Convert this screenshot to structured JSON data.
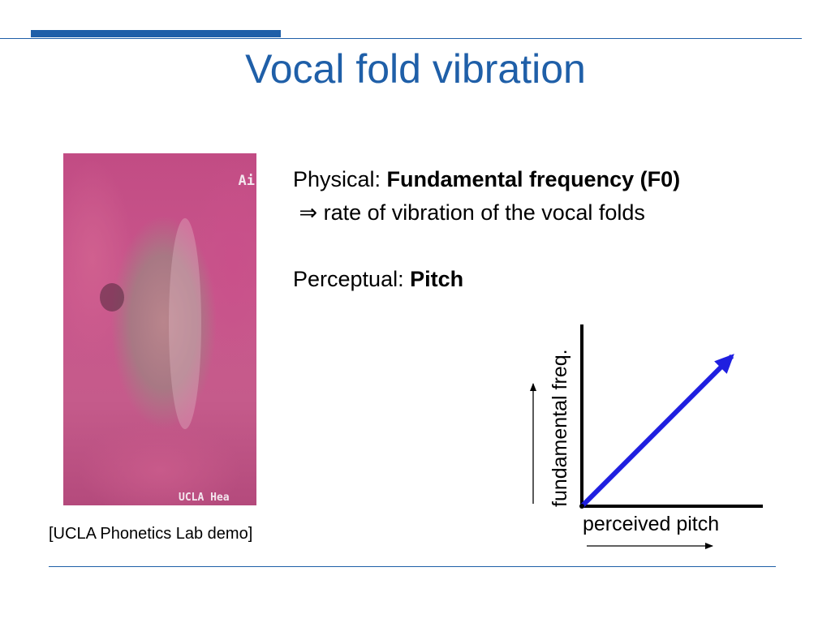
{
  "title": "Vocal fold vibration",
  "photo": {
    "overlay_top": "Ai",
    "overlay_bottom": "UCLA Hea"
  },
  "caption": "[UCLA Phonetics Lab demo]",
  "physical": {
    "label": "Physical: ",
    "term": "Fundamental frequency (F0)",
    "arrow": "⇒",
    "explanation": " rate of vibration of the vocal folds"
  },
  "perceptual": {
    "label": "Perceptual: ",
    "term": "Pitch"
  },
  "graph": {
    "y_axis_label": "fundamental freq.",
    "x_axis_label": "perceived pitch",
    "line_color": "#1f1fe0",
    "axis_color": "#000000"
  },
  "colors": {
    "accent": "#1f5fa8"
  }
}
